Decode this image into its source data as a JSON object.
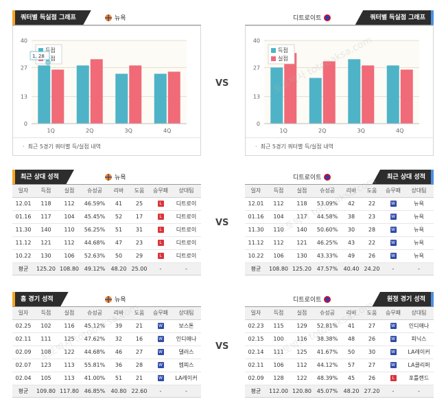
{
  "teams": {
    "home": "뉴욕",
    "away": "디트로이트"
  },
  "colors": {
    "win_series": "#4fb3c7",
    "loss_series": "#f06a78",
    "win_badge": "#2f4aa6",
    "loss_badge": "#d9343a",
    "accent_left": "#f5a623",
    "accent_right": "#4a90e2"
  },
  "vs_label": "VS",
  "quarter_section": {
    "title": "쿼터별 득실점 그래프",
    "note": "최근 5경기 쿼터별 득/실점 내역",
    "tooltip": "1, 28"
  },
  "chart_data": [
    {
      "type": "bar",
      "team": "뉴욕",
      "categories": [
        "1Q",
        "2Q",
        "3Q",
        "4Q"
      ],
      "series": [
        {
          "name": "득점",
          "values": [
            28,
            28,
            24,
            24
          ]
        },
        {
          "name": "실점",
          "values": [
            26,
            31,
            28,
            25
          ]
        }
      ],
      "yticks": [
        "0",
        "13",
        "27",
        "40"
      ],
      "ylim": [
        0,
        40
      ],
      "grid": true,
      "legend": "top-left"
    },
    {
      "type": "bar",
      "team": "디트로이트",
      "categories": [
        "1Q",
        "2Q",
        "3Q",
        "4Q"
      ],
      "series": [
        {
          "name": "득점",
          "values": [
            27,
            22,
            31,
            28
          ]
        },
        {
          "name": "실점",
          "values": [
            34,
            30,
            28,
            26
          ]
        }
      ],
      "yticks": [
        "0",
        "13",
        "27",
        "40"
      ],
      "ylim": [
        0,
        40
      ],
      "grid": true,
      "legend": "top-left"
    }
  ],
  "columns": [
    "일자",
    "득점",
    "실점",
    "슈성공",
    "리바",
    "도움",
    "승무패",
    "상대팀"
  ],
  "recent_section": {
    "title": "최근 상대 성적",
    "left": {
      "rows": [
        [
          "12.01",
          "118",
          "112",
          "46.59%",
          "41",
          "25",
          "L",
          "디트로이"
        ],
        [
          "01.16",
          "117",
          "104",
          "45.45%",
          "52",
          "17",
          "L",
          "디트로이"
        ],
        [
          "11.30",
          "140",
          "110",
          "56.25%",
          "51",
          "31",
          "L",
          "디트로이"
        ],
        [
          "11.12",
          "121",
          "112",
          "44.68%",
          "47",
          "23",
          "L",
          "디트로이"
        ],
        [
          "10.22",
          "130",
          "106",
          "52.63%",
          "50",
          "29",
          "L",
          "디트로이"
        ]
      ],
      "avg": [
        "평균",
        "125.20",
        "108.80",
        "49.12%",
        "48.20",
        "25.00",
        "-",
        "-"
      ]
    },
    "right": {
      "rows": [
        [
          "12.01",
          "112",
          "118",
          "53.09%",
          "42",
          "22",
          "W",
          "뉴욕"
        ],
        [
          "01.16",
          "104",
          "117",
          "44.58%",
          "38",
          "23",
          "W",
          "뉴욕"
        ],
        [
          "11.30",
          "110",
          "140",
          "50.60%",
          "30",
          "28",
          "W",
          "뉴욕"
        ],
        [
          "11.12",
          "112",
          "121",
          "46.25%",
          "43",
          "22",
          "W",
          "뉴욕"
        ],
        [
          "10.22",
          "106",
          "130",
          "43.33%",
          "49",
          "26",
          "W",
          "뉴욕"
        ]
      ],
      "avg": [
        "평균",
        "108.80",
        "125.20",
        "47.57%",
        "40.40",
        "24.20",
        "-",
        "-"
      ]
    }
  },
  "home_section": {
    "title": "홈 경기 성적",
    "rows": [
      [
        "02.25",
        "102",
        "116",
        "45.12%",
        "39",
        "21",
        "W",
        "보스톤"
      ],
      [
        "02.11",
        "111",
        "125",
        "47.62%",
        "32",
        "16",
        "W",
        "인디애나"
      ],
      [
        "02.09",
        "108",
        "122",
        "44.68%",
        "46",
        "27",
        "W",
        "댈러스"
      ],
      [
        "02.07",
        "123",
        "113",
        "55.81%",
        "36",
        "28",
        "W",
        "멤피스"
      ],
      [
        "02.04",
        "105",
        "113",
        "41.00%",
        "51",
        "21",
        "W",
        "LA레이커"
      ]
    ],
    "avg": [
      "평균",
      "109.80",
      "117.80",
      "46.85%",
      "40.80",
      "22.60",
      "-",
      "-"
    ]
  },
  "away_section": {
    "title": "원정 경기 성적",
    "rows": [
      [
        "02.23",
        "115",
        "129",
        "52.81%",
        "41",
        "27",
        "W",
        "인디애나"
      ],
      [
        "02.15",
        "100",
        "116",
        "38.38%",
        "48",
        "26",
        "W",
        "피닉스"
      ],
      [
        "02.14",
        "111",
        "125",
        "41.67%",
        "50",
        "30",
        "W",
        "LA레이커"
      ],
      [
        "02.11",
        "106",
        "112",
        "44.12%",
        "57",
        "27",
        "W",
        "LA클리퍼"
      ],
      [
        "02.09",
        "128",
        "122",
        "48.39%",
        "45",
        "26",
        "L",
        "포틀랜드"
      ]
    ],
    "avg": [
      "평균",
      "112.00",
      "120.80",
      "45.07%",
      "48.20",
      "27.20",
      "-",
      "-"
    ]
  },
  "watermark": "토토박사 totobaksa.com"
}
